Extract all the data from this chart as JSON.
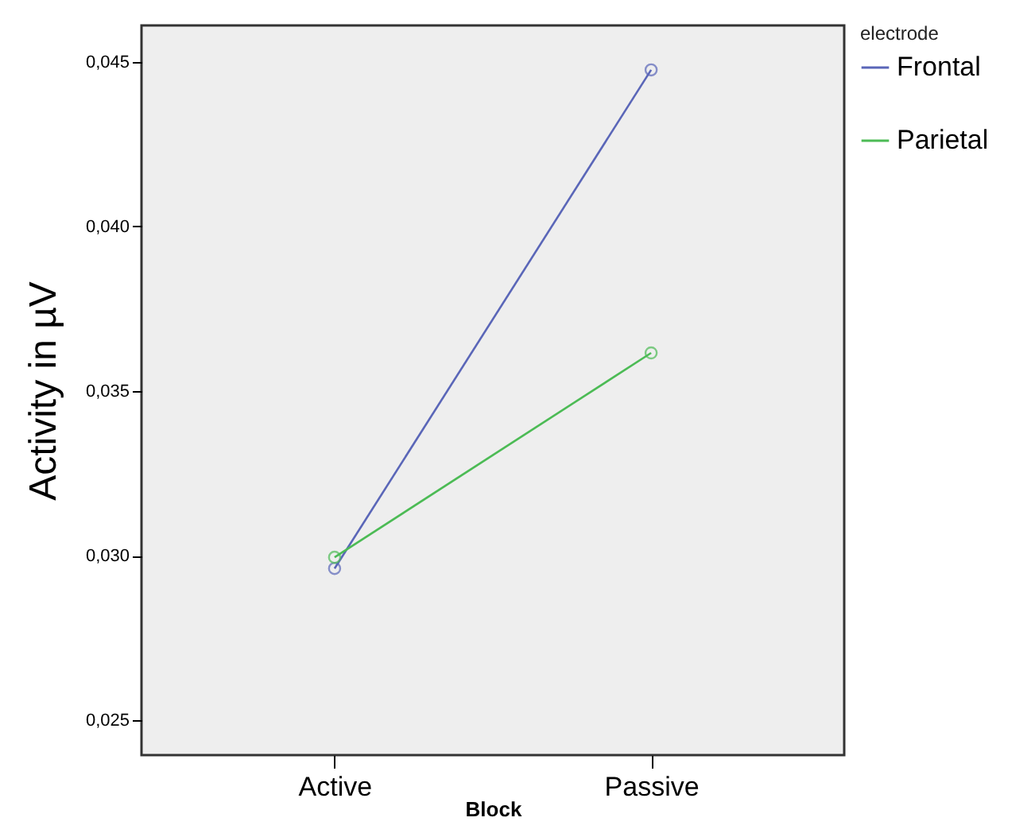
{
  "chart_data": {
    "type": "line",
    "xlabel": "Block",
    "ylabel": "Activity in µV",
    "legend_title": "electrode",
    "categories": [
      "Active",
      "Passive"
    ],
    "series": [
      {
        "name": "Frontal",
        "color": "#5a66b8",
        "values": [
          0.02961,
          0.04476
        ]
      },
      {
        "name": "Parietal",
        "color": "#4cbb55",
        "values": [
          0.02995,
          0.03616
        ]
      }
    ],
    "ylim": [
      0.02394,
      0.04611
    ],
    "yticks": [
      {
        "value": 0.025,
        "label": "0,025"
      },
      {
        "value": 0.03,
        "label": "0,030"
      },
      {
        "value": 0.035,
        "label": "0,035"
      },
      {
        "value": 0.04,
        "label": "0,040"
      },
      {
        "value": 0.045,
        "label": "0,045"
      }
    ],
    "grid": false,
    "legend": "top right",
    "marker": "circle",
    "line_style": "solid"
  }
}
